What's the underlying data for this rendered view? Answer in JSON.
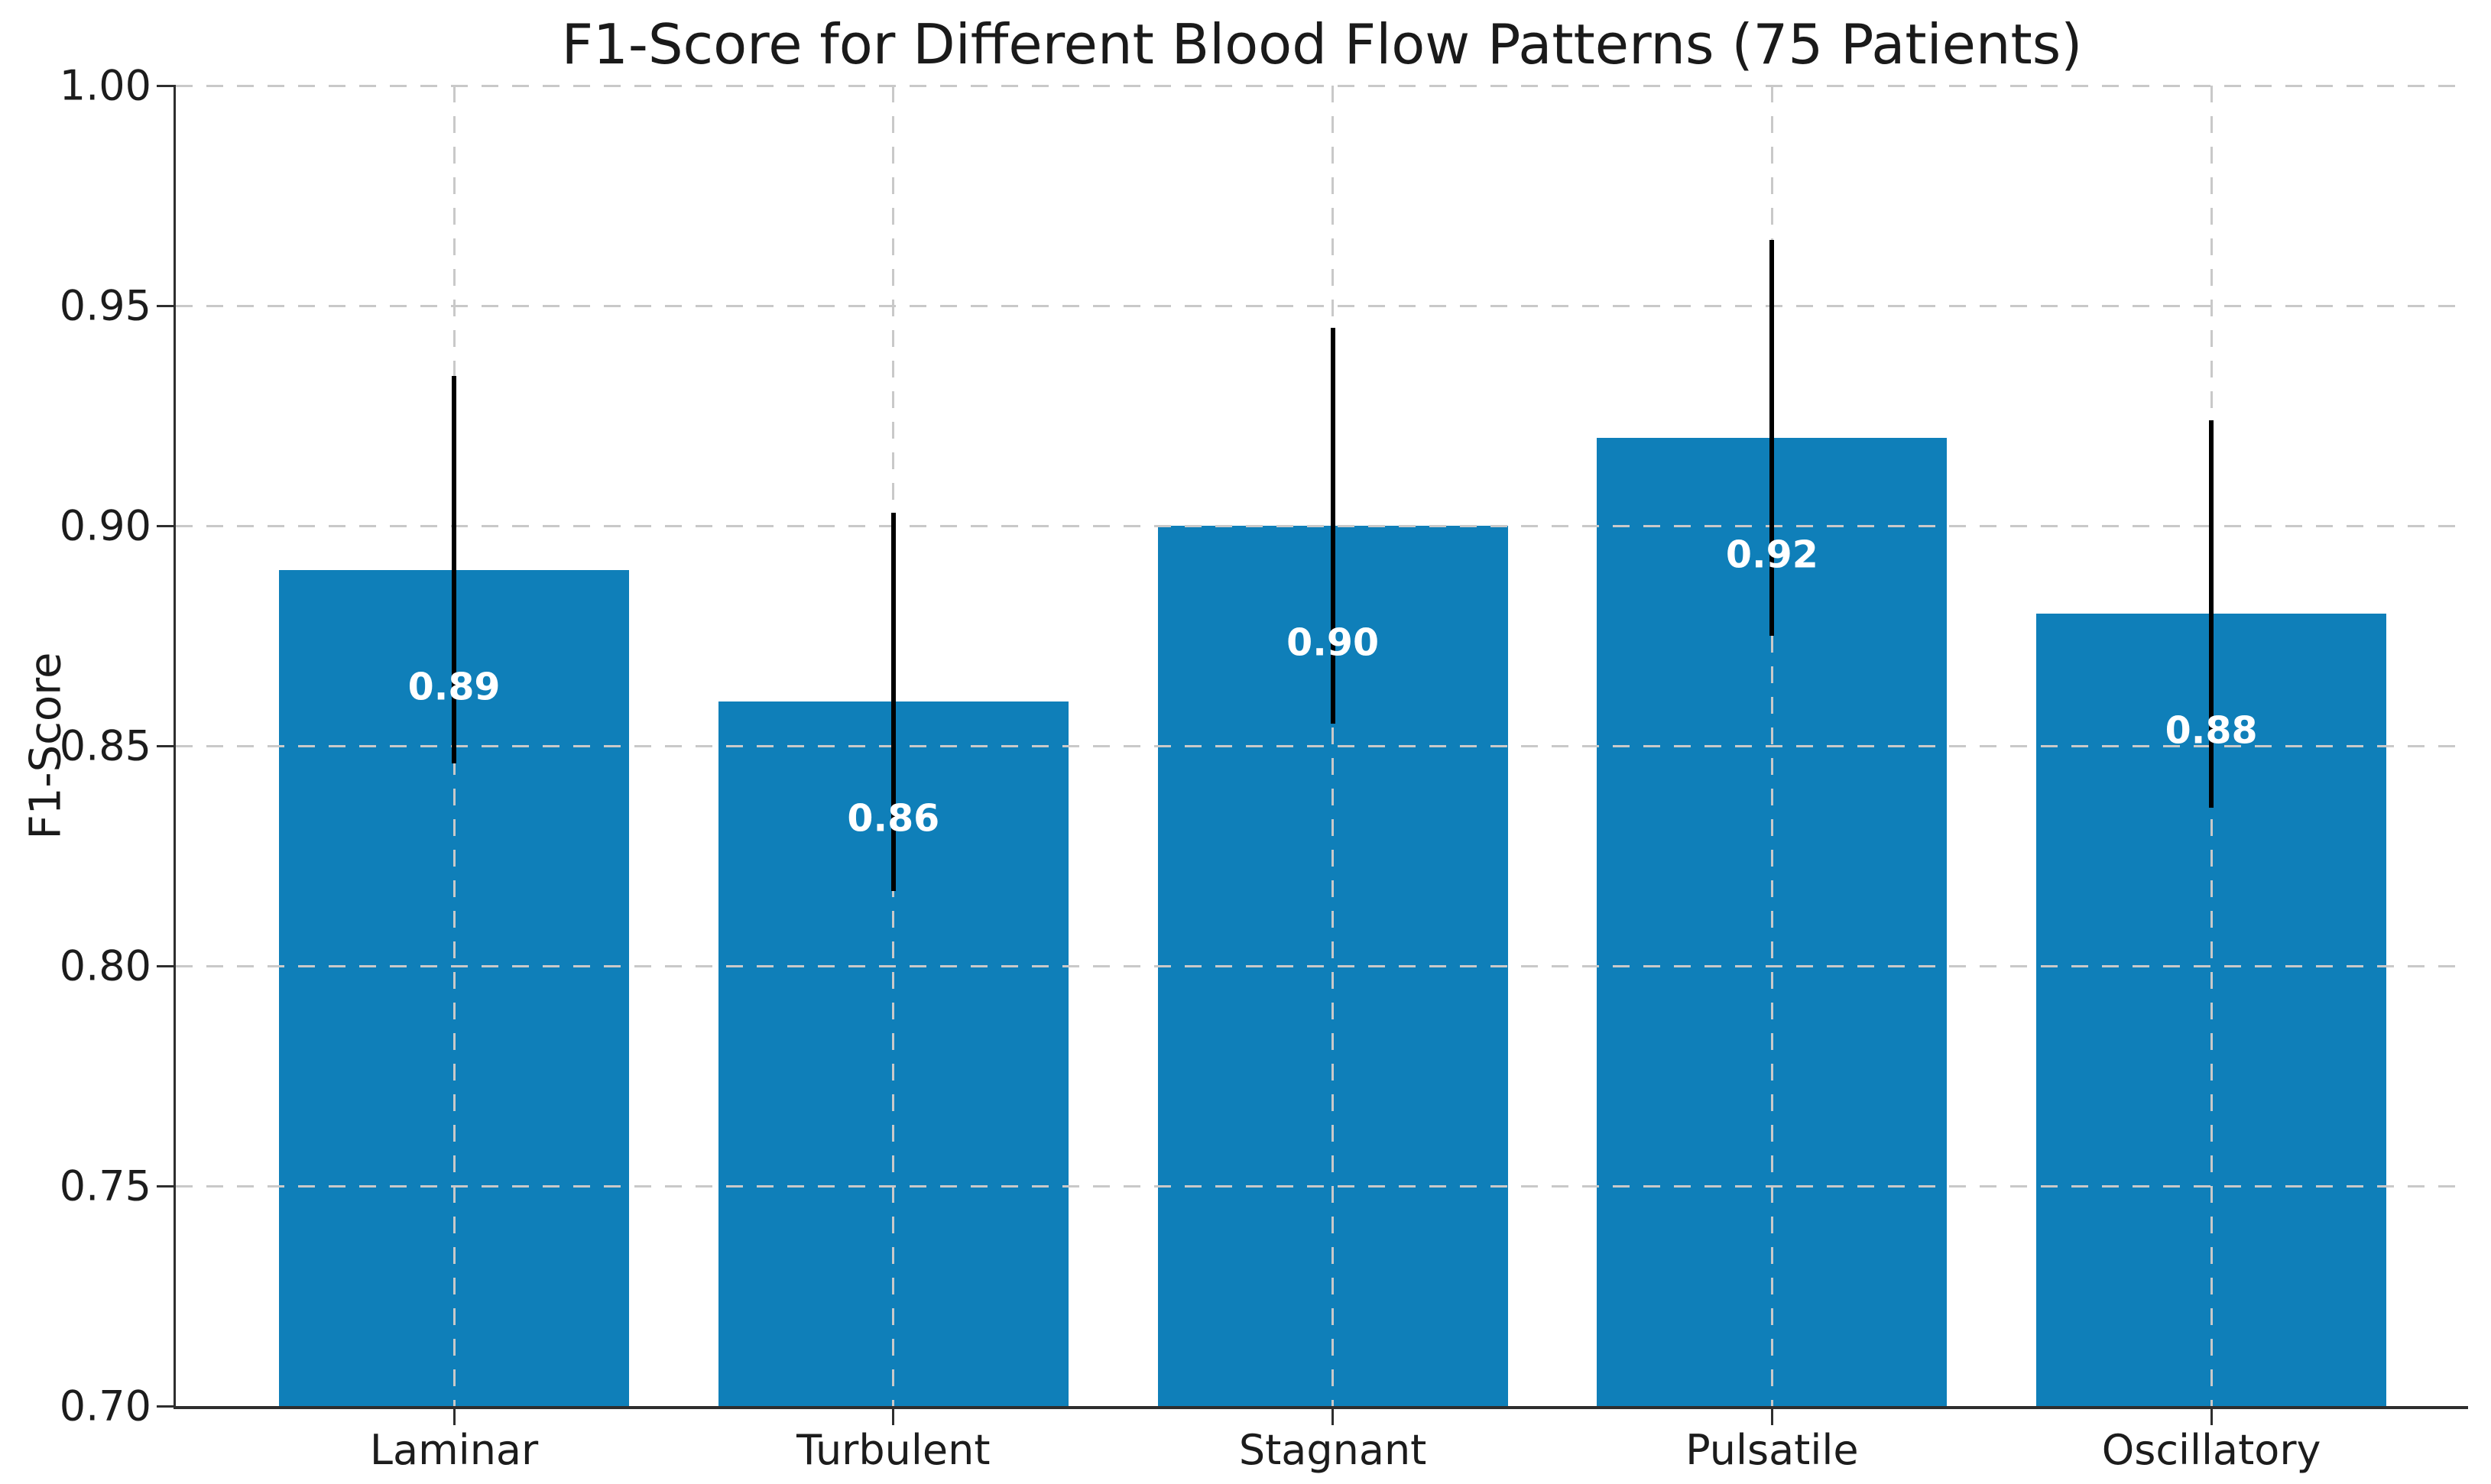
{
  "chart_data": {
    "type": "bar",
    "title": "F1-Score for Different Blood Flow Patterns (75 Patients)",
    "xlabel": "",
    "ylabel": "F1-Score",
    "categories": [
      "Laminar",
      "Turbulent",
      "Stagnant",
      "Pulsatile",
      "Oscillatory"
    ],
    "values": [
      0.89,
      0.86,
      0.9,
      0.92,
      0.88
    ],
    "errors": [
      0.044,
      0.043,
      0.045,
      0.045,
      0.044
    ],
    "bar_value_labels": [
      "0.89",
      "0.86",
      "0.90",
      "0.92",
      "0.88"
    ],
    "ylim": [
      0.7,
      1.0
    ],
    "yticks": [
      0.7,
      0.75,
      0.8,
      0.85,
      0.9,
      0.95,
      1.0
    ],
    "ytick_labels": [
      "0.70",
      "0.75",
      "0.80",
      "0.85",
      "0.90",
      "0.95",
      "1.00"
    ],
    "grid": "dashed, both axes, drawn over bars",
    "legend": "none",
    "colors": {
      "bar_fill": "#0f7fb9",
      "error_bar": "#000000",
      "value_label": "#ffffff",
      "grid_line": "#c9c9c9",
      "spine": "#2e2e2e",
      "text": "#1a1a1a"
    }
  }
}
